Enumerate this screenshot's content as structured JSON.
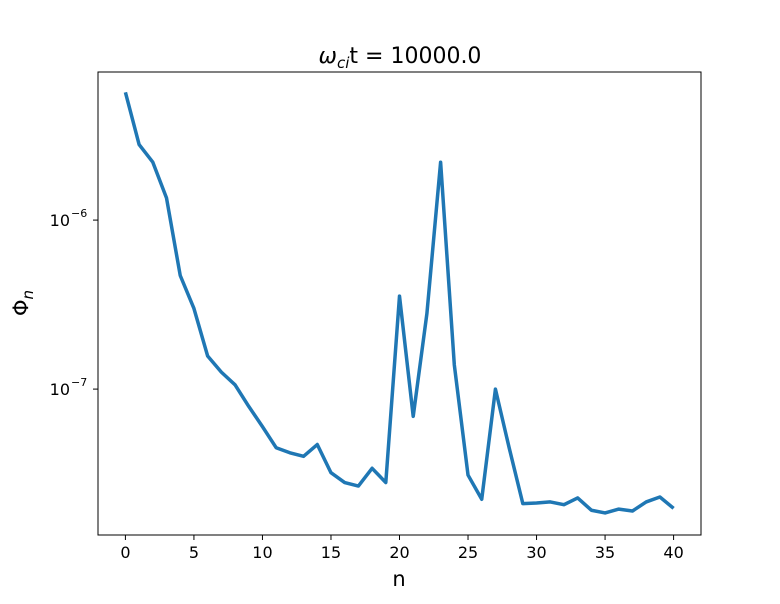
{
  "chart_data": {
    "type": "line",
    "title_parts": [
      "ω",
      "ci",
      "t = 10000.0"
    ],
    "xlabel": "n",
    "ylabel_parts": [
      "Φ",
      "n"
    ],
    "x": [
      0,
      1,
      2,
      3,
      4,
      5,
      6,
      7,
      8,
      9,
      10,
      11,
      12,
      13,
      14,
      15,
      16,
      17,
      18,
      19,
      20,
      21,
      22,
      23,
      24,
      25,
      26,
      27,
      28,
      29,
      30,
      31,
      32,
      33,
      34,
      35,
      36,
      37,
      38,
      39,
      40
    ],
    "series": [
      {
        "color": "#1f77b4",
        "values": [
          5.7e-06,
          2.8e-06,
          2.2e-06,
          1.35e-06,
          4.7e-07,
          3e-07,
          1.57e-07,
          1.26e-07,
          1.06e-07,
          7.9e-08,
          6e-08,
          4.5e-08,
          4.2e-08,
          4e-08,
          4.7e-08,
          3.2e-08,
          2.8e-08,
          2.67e-08,
          3.4e-08,
          2.8e-08,
          3.55e-07,
          6.9e-08,
          2.8e-07,
          2.2e-06,
          1.39e-07,
          3.1e-08,
          2.23e-08,
          1e-07,
          4.5e-08,
          2.1e-08,
          2.12e-08,
          2.15e-08,
          2.07e-08,
          2.27e-08,
          1.92e-08,
          1.85e-08,
          1.95e-08,
          1.9e-08,
          2.15e-08,
          2.3e-08,
          1.97e-08
        ]
      }
    ],
    "xlim": [
      -2,
      42
    ],
    "xticks": [
      0,
      5,
      10,
      15,
      20,
      25,
      30,
      35,
      40
    ],
    "ylim": [
      1.37e-08,
      7.52e-06
    ],
    "yscale": "log",
    "yticks": [
      {
        "value": 1e-07,
        "label": "10",
        "exponent": "−7"
      },
      {
        "value": 1e-06,
        "label": "10",
        "exponent": "−6"
      }
    ]
  }
}
